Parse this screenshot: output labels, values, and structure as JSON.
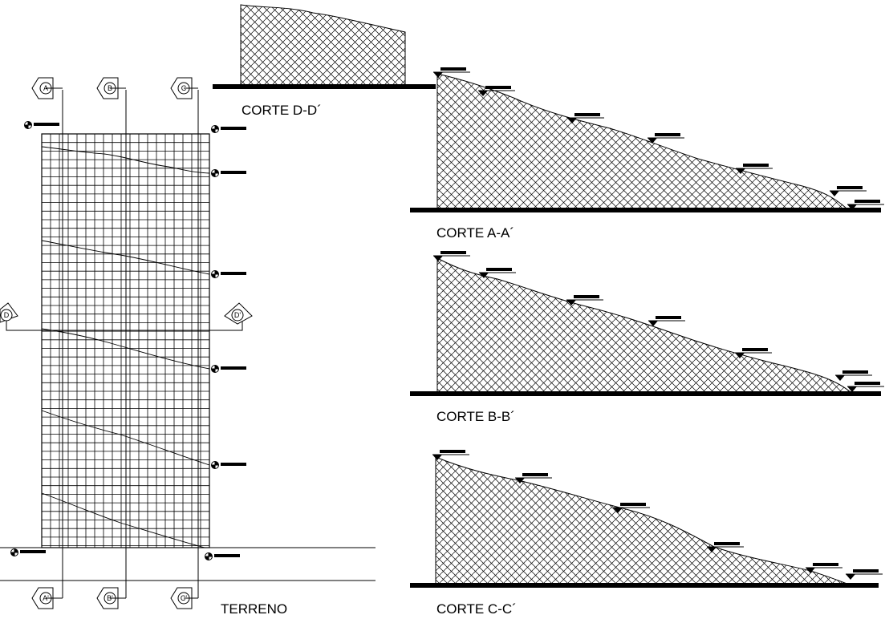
{
  "labels": {
    "plan": "TERRENO",
    "section_d": "CORTE D-D´",
    "section_a": "CORTE A-A´",
    "section_b": "CORTE B-B´",
    "section_c": "CORTE C-C´"
  },
  "markers": {
    "a_top": "A",
    "b_top": "B",
    "c_top": "C",
    "a_bottom": "A'",
    "b_bottom": "B'",
    "c_bottom": "C'",
    "d_left": "D",
    "d_right": "D'"
  },
  "colors": {
    "ink": "#000000",
    "paper": "#ffffff"
  },
  "icons": {
    "section_marker": "section-cut-marker-icon",
    "level_marker": "level-datum-icon",
    "elevation_triangle": "elevation-triangle-icon"
  }
}
